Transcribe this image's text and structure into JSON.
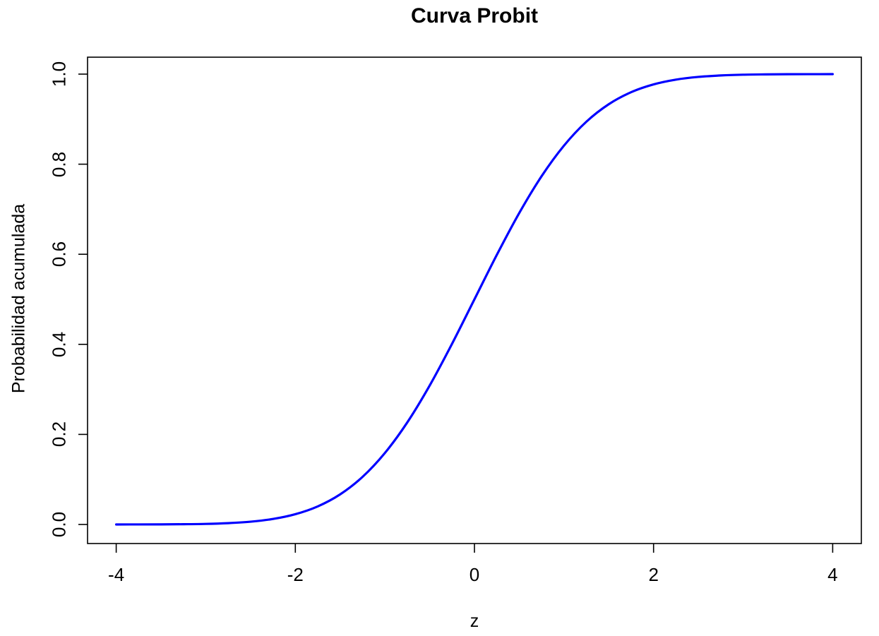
{
  "chart": {
    "title": "Curva Probit",
    "xlabel": "z",
    "ylabel": "Probabilidad acumulada",
    "curve_color": "#0000ff",
    "axis_color": "#000000",
    "text_color": "#000000",
    "background_color": "#ffffff"
  },
  "chart_data": {
    "type": "line",
    "title": "Curva Probit",
    "xlabel": "z",
    "ylabel": "Probabilidad acumulada",
    "xlim": [
      -4,
      4
    ],
    "ylim": [
      0,
      1
    ],
    "grid": false,
    "legend_position": "none",
    "x_ticks": [
      {
        "value": -4,
        "label": "-4"
      },
      {
        "value": -2,
        "label": "-2"
      },
      {
        "value": 0,
        "label": "0"
      },
      {
        "value": 2,
        "label": "2"
      },
      {
        "value": 4,
        "label": "4"
      }
    ],
    "y_ticks": [
      {
        "value": 0.0,
        "label": "0.0"
      },
      {
        "value": 0.2,
        "label": "0.2"
      },
      {
        "value": 0.4,
        "label": "0.4"
      },
      {
        "value": 0.6,
        "label": "0.6"
      },
      {
        "value": 0.8,
        "label": "0.8"
      },
      {
        "value": 1.0,
        "label": "1.0"
      }
    ],
    "series": [
      {
        "description": "cumulative standard normal probability pnorm(z)",
        "color": "#0000ff",
        "x": [
          -4,
          -3.75,
          -3.5,
          -3.25,
          -3,
          -2.75,
          -2.5,
          -2.25,
          -2,
          -1.75,
          -1.5,
          -1.25,
          -1,
          -0.75,
          -0.5,
          -0.25,
          0,
          0.25,
          0.5,
          0.75,
          1,
          1.25,
          1.5,
          1.75,
          2,
          2.25,
          2.5,
          2.75,
          3,
          3.25,
          3.5,
          3.75,
          4
        ],
        "y": [
          0.0,
          0.0001,
          0.0002,
          0.0006,
          0.0013,
          0.003,
          0.0062,
          0.0122,
          0.0228,
          0.0401,
          0.0668,
          0.1056,
          0.1587,
          0.2266,
          0.3085,
          0.4013,
          0.5,
          0.5987,
          0.6915,
          0.7734,
          0.8413,
          0.8944,
          0.9332,
          0.9599,
          0.9772,
          0.9878,
          0.9938,
          0.997,
          0.9987,
          0.9994,
          0.9998,
          0.9999,
          1.0
        ]
      }
    ]
  }
}
